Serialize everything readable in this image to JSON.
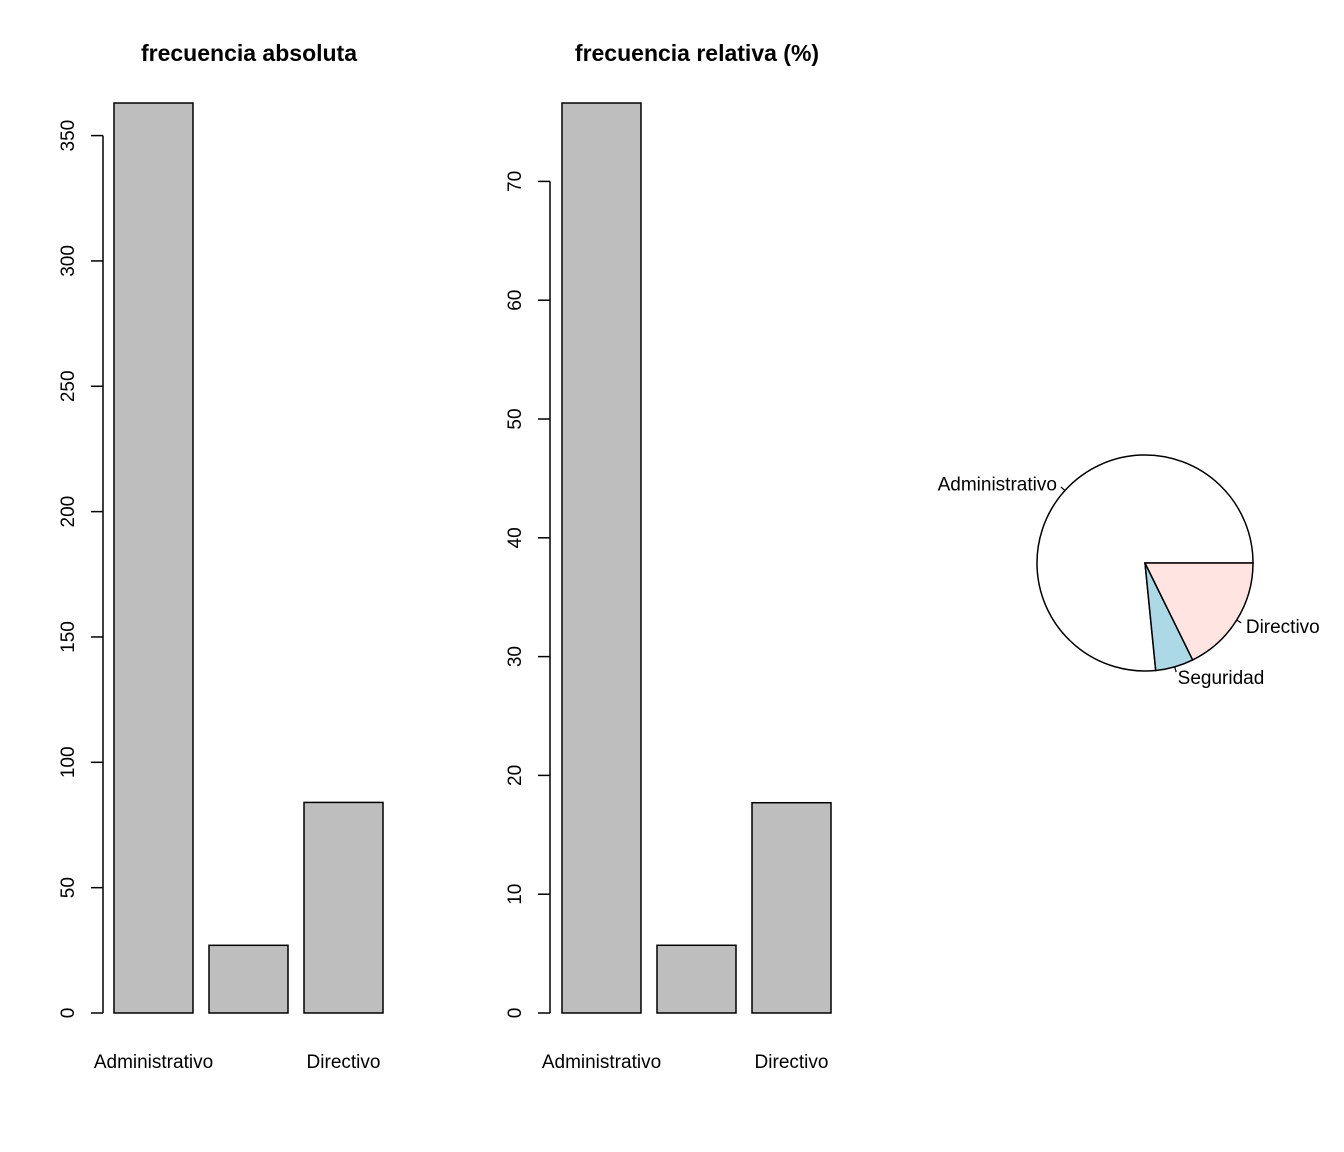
{
  "chart_data": [
    {
      "type": "bar",
      "title": "frecuencia absoluta",
      "categories": [
        "Administrativo",
        "Seguridad",
        "Directivo"
      ],
      "category_labels_shown": [
        "Administrativo",
        "",
        "Directivo"
      ],
      "values": [
        363,
        27,
        84
      ],
      "ylim": [
        0,
        363
      ],
      "yticks": [
        0,
        50,
        100,
        150,
        200,
        250,
        300,
        350
      ],
      "xlabel": "",
      "ylabel": "",
      "bar_color": "#bebebe",
      "grid": false
    },
    {
      "type": "bar",
      "title": "frecuencia relativa (%)",
      "categories": [
        "Administrativo",
        "Seguridad",
        "Directivo"
      ],
      "category_labels_shown": [
        "Administrativo",
        "",
        "Directivo"
      ],
      "values": [
        76.6,
        5.7,
        17.7
      ],
      "ylim": [
        0,
        76.6
      ],
      "yticks": [
        0,
        10,
        20,
        30,
        40,
        50,
        60,
        70
      ],
      "xlabel": "",
      "ylabel": "",
      "bar_color": "#bebebe",
      "grid": false
    },
    {
      "type": "pie",
      "title": "",
      "labels": [
        "Administrativo",
        "Seguridad",
        "Directivo"
      ],
      "values": [
        363,
        27,
        84
      ],
      "colors": [
        "#ffffff",
        "#add8e6",
        "#ffe4e1"
      ],
      "start_angle_deg": 0,
      "direction": "counterclockwise"
    }
  ]
}
